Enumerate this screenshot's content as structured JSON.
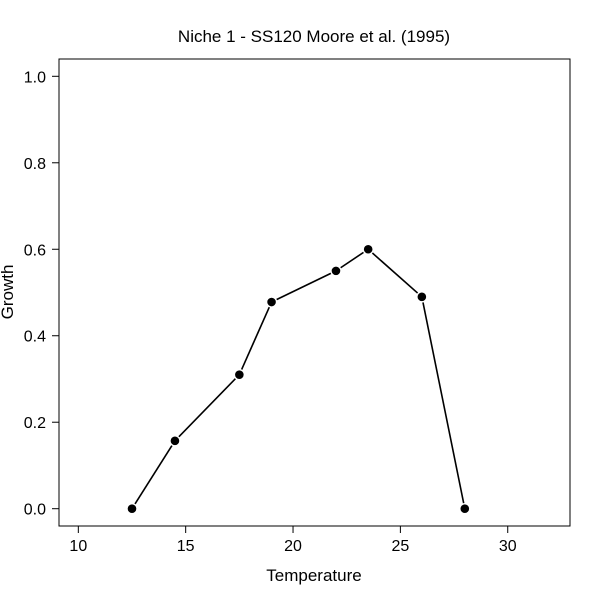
{
  "chart_data": {
    "type": "line",
    "title": "Niche 1  -  SS120 Moore et al. (1995)",
    "xlabel": "Temperature",
    "ylabel": "Growth",
    "xlim": [
      9.1,
      32.9
    ],
    "ylim": [
      -0.04,
      1.04
    ],
    "xticks": [
      10,
      15,
      20,
      25,
      30
    ],
    "yticks": [
      0.0,
      0.2,
      0.4,
      0.6,
      0.8,
      1.0
    ],
    "xtick_labels": [
      "10",
      "15",
      "20",
      "25",
      "30"
    ],
    "ytick_labels": [
      "0.0",
      "0.2",
      "0.4",
      "0.6",
      "0.8",
      "1.0"
    ],
    "grid": false,
    "legend": "none",
    "line_color": "#000000",
    "marker_color": "#000000",
    "series": [
      {
        "x": [
          12.5,
          14.5,
          17.5,
          19.0,
          22.0,
          23.5,
          26.0,
          28.0
        ],
        "y": [
          0.0,
          0.157,
          0.31,
          0.478,
          0.55,
          0.6,
          0.49,
          0.0
        ]
      }
    ]
  }
}
